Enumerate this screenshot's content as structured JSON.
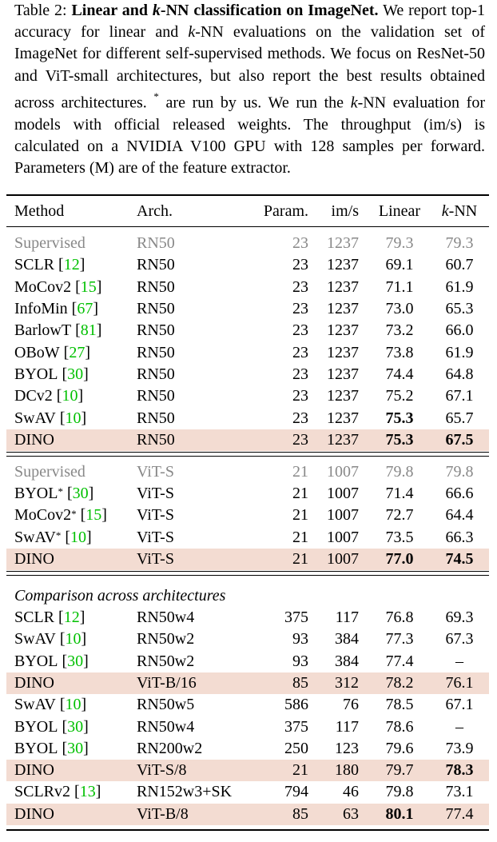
{
  "caption": {
    "label": "Table 2:",
    "title": [
      "Linear and ",
      "k",
      "-NN classification on ImageNet."
    ],
    "body": [
      "We report top-1 accuracy for linear and ",
      "k",
      "-NN evaluations on the validation set of ImageNet for different self-supervised methods. We focus on ResNet-50 and ViT-small architectures, but also report the best results obtained across architectures. ",
      "*",
      " are run by us. We run the ",
      "k",
      "-NN evaluation for models with official released weights. The throughput (im/s) is calculated on a NVIDIA V100 GPU with 128 samples per forward. Parameters (M) are of the feature extractor."
    ]
  },
  "table": {
    "header": {
      "method": "Method",
      "arch": "Arch.",
      "params": "Param.",
      "ims": "im/s",
      "linear": "Linear",
      "knn": [
        "k",
        "-NN"
      ]
    },
    "sections": [
      {
        "rows": [
          {
            "method": "Supervised",
            "arch": "RN50",
            "params": 23,
            "ims": 1237,
            "linear": 79.3,
            "knn": 79.3,
            "gray": true
          },
          {
            "method": "SCLR",
            "ref": "[12]",
            "arch": "RN50",
            "params": 23,
            "ims": 1237,
            "linear": 69.1,
            "knn": 60.7
          },
          {
            "method": "MoCov2",
            "ref": "[15]",
            "arch": "RN50",
            "params": 23,
            "ims": 1237,
            "linear": 71.1,
            "knn": 61.9
          },
          {
            "method": "InfoMin",
            "ref": "[67]",
            "arch": "RN50",
            "params": 23,
            "ims": 1237,
            "linear": "73.0",
            "knn": 65.3
          },
          {
            "method": "BarlowT",
            "ref": "[81]",
            "arch": "RN50",
            "params": 23,
            "ims": 1237,
            "linear": 73.2,
            "knn": "66.0"
          },
          {
            "method": "OBoW",
            "ref": "[27]",
            "arch": "RN50",
            "params": 23,
            "ims": 1237,
            "linear": 73.8,
            "knn": 61.9
          },
          {
            "method": "BYOL",
            "ref": "[30]",
            "arch": "RN50",
            "params": 23,
            "ims": 1237,
            "linear": 74.4,
            "knn": 64.8
          },
          {
            "method": "DCv2",
            "ref": "[10]",
            "arch": "RN50",
            "params": 23,
            "ims": 1237,
            "linear": 75.2,
            "knn": 67.1
          },
          {
            "method": "SwAV",
            "ref": "[10]",
            "arch": "RN50",
            "params": 23,
            "ims": 1237,
            "linear": 75.3,
            "knn": 65.7,
            "bold": [
              "linear"
            ]
          },
          {
            "method": "DINO",
            "arch": "RN50",
            "params": 23,
            "ims": 1237,
            "linear": 75.3,
            "knn": 67.5,
            "bold": [
              "linear",
              "knn"
            ],
            "highlight": true
          }
        ]
      },
      {
        "rows": [
          {
            "method": "Supervised",
            "arch": "ViT-S",
            "params": 21,
            "ims": 1007,
            "linear": 79.8,
            "knn": 79.8,
            "gray": true
          },
          {
            "method": "BYOL",
            "sup": "*",
            "ref": "[30]",
            "arch": "ViT-S",
            "params": 21,
            "ims": 1007,
            "linear": 71.4,
            "knn": 66.6
          },
          {
            "method": "MoCov2",
            "sup": "*",
            "ref": "[15]",
            "arch": "ViT-S",
            "params": 21,
            "ims": 1007,
            "linear": 72.7,
            "knn": 64.4
          },
          {
            "method": "SwAV",
            "sup": "*",
            "ref": "[10]",
            "arch": "ViT-S",
            "params": 21,
            "ims": 1007,
            "linear": 73.5,
            "knn": 66.3
          },
          {
            "method": "DINO",
            "arch": "ViT-S",
            "params": 21,
            "ims": 1007,
            "linear": "77.0",
            "knn": 74.5,
            "bold": [
              "linear",
              "knn"
            ],
            "highlight": true
          }
        ]
      },
      {
        "heading": "Comparison across architectures",
        "rows": [
          {
            "method": "SCLR",
            "ref": "[12]",
            "arch": "RN50w4",
            "params": 375,
            "ims": 117,
            "linear": 76.8,
            "knn": 69.3
          },
          {
            "method": "SwAV",
            "ref": "[10]",
            "arch": "RN50w2",
            "params": 93,
            "ims": 384,
            "linear": 77.3,
            "knn": 67.3
          },
          {
            "method": "BYOL",
            "ref": "[30]",
            "arch": "RN50w2",
            "params": 93,
            "ims": 384,
            "linear": 77.4,
            "knn": "–"
          },
          {
            "method": "DINO",
            "arch": "ViT-B/16",
            "params": 85,
            "ims": 312,
            "linear": 78.2,
            "knn": 76.1,
            "highlight": true
          },
          {
            "method": "SwAV",
            "ref": "[10]",
            "arch": "RN50w5",
            "params": 586,
            "ims": 76,
            "linear": 78.5,
            "knn": 67.1
          },
          {
            "method": "BYOL",
            "ref": "[30]",
            "arch": "RN50w4",
            "params": 375,
            "ims": 117,
            "linear": 78.6,
            "knn": "–"
          },
          {
            "method": "BYOL",
            "ref": "[30]",
            "arch": "RN200w2",
            "params": 250,
            "ims": 123,
            "linear": 79.6,
            "knn": 73.9
          },
          {
            "method": "DINO",
            "arch": "ViT-S/8",
            "params": 21,
            "ims": 180,
            "linear": 79.7,
            "knn": 78.3,
            "bold": [
              "knn"
            ],
            "highlight": true
          },
          {
            "method": "SCLRv2",
            "ref": "[13]",
            "arch": "RN152w3+SK",
            "params": 794,
            "ims": 46,
            "linear": 79.8,
            "knn": 73.1
          },
          {
            "method": "DINO",
            "arch": "ViT-B/8",
            "params": 85,
            "ims": 63,
            "linear": 80.1,
            "knn": 77.4,
            "bold": [
              "linear"
            ],
            "highlight": true
          }
        ]
      }
    ]
  }
}
